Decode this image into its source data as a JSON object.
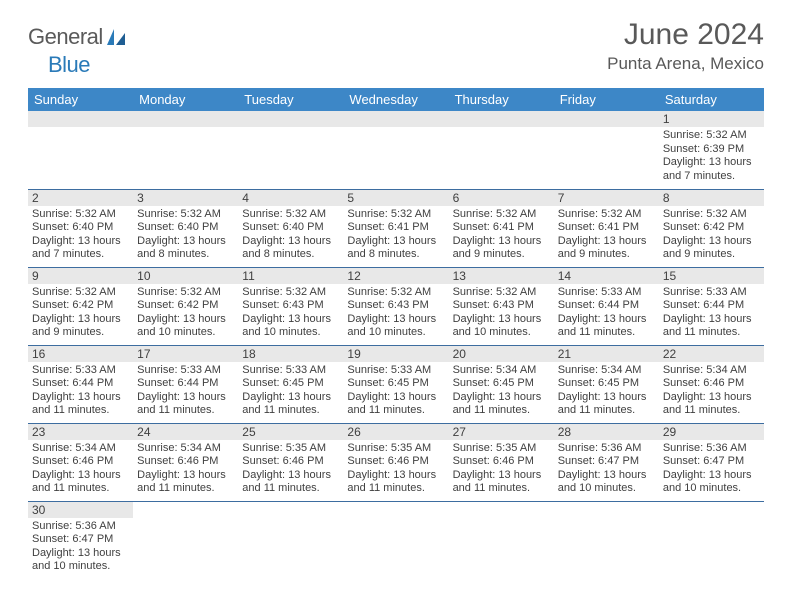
{
  "brand": {
    "text1": "General",
    "text2": "Blue"
  },
  "title": "June 2024",
  "location": "Punta Arena, Mexico",
  "colors": {
    "header_bg": "#3d87c7",
    "header_text": "#ffffff",
    "daynum_bg": "#e8e8e8",
    "row_border": "#3d6da0",
    "body_text": "#404040",
    "title_text": "#595959",
    "logo_gray": "#5a5a5a",
    "logo_blue": "#2a7ab8"
  },
  "day_headers": [
    "Sunday",
    "Monday",
    "Tuesday",
    "Wednesday",
    "Thursday",
    "Friday",
    "Saturday"
  ],
  "weeks": [
    [
      {
        "n": "",
        "lines": []
      },
      {
        "n": "",
        "lines": []
      },
      {
        "n": "",
        "lines": []
      },
      {
        "n": "",
        "lines": []
      },
      {
        "n": "",
        "lines": []
      },
      {
        "n": "",
        "lines": []
      },
      {
        "n": "1",
        "lines": [
          "Sunrise: 5:32 AM",
          "Sunset: 6:39 PM",
          "Daylight: 13 hours",
          "and 7 minutes."
        ]
      }
    ],
    [
      {
        "n": "2",
        "lines": [
          "Sunrise: 5:32 AM",
          "Sunset: 6:40 PM",
          "Daylight: 13 hours",
          "and 7 minutes."
        ]
      },
      {
        "n": "3",
        "lines": [
          "Sunrise: 5:32 AM",
          "Sunset: 6:40 PM",
          "Daylight: 13 hours",
          "and 8 minutes."
        ]
      },
      {
        "n": "4",
        "lines": [
          "Sunrise: 5:32 AM",
          "Sunset: 6:40 PM",
          "Daylight: 13 hours",
          "and 8 minutes."
        ]
      },
      {
        "n": "5",
        "lines": [
          "Sunrise: 5:32 AM",
          "Sunset: 6:41 PM",
          "Daylight: 13 hours",
          "and 8 minutes."
        ]
      },
      {
        "n": "6",
        "lines": [
          "Sunrise: 5:32 AM",
          "Sunset: 6:41 PM",
          "Daylight: 13 hours",
          "and 9 minutes."
        ]
      },
      {
        "n": "7",
        "lines": [
          "Sunrise: 5:32 AM",
          "Sunset: 6:41 PM",
          "Daylight: 13 hours",
          "and 9 minutes."
        ]
      },
      {
        "n": "8",
        "lines": [
          "Sunrise: 5:32 AM",
          "Sunset: 6:42 PM",
          "Daylight: 13 hours",
          "and 9 minutes."
        ]
      }
    ],
    [
      {
        "n": "9",
        "lines": [
          "Sunrise: 5:32 AM",
          "Sunset: 6:42 PM",
          "Daylight: 13 hours",
          "and 9 minutes."
        ]
      },
      {
        "n": "10",
        "lines": [
          "Sunrise: 5:32 AM",
          "Sunset: 6:42 PM",
          "Daylight: 13 hours",
          "and 10 minutes."
        ]
      },
      {
        "n": "11",
        "lines": [
          "Sunrise: 5:32 AM",
          "Sunset: 6:43 PM",
          "Daylight: 13 hours",
          "and 10 minutes."
        ]
      },
      {
        "n": "12",
        "lines": [
          "Sunrise: 5:32 AM",
          "Sunset: 6:43 PM",
          "Daylight: 13 hours",
          "and 10 minutes."
        ]
      },
      {
        "n": "13",
        "lines": [
          "Sunrise: 5:32 AM",
          "Sunset: 6:43 PM",
          "Daylight: 13 hours",
          "and 10 minutes."
        ]
      },
      {
        "n": "14",
        "lines": [
          "Sunrise: 5:33 AM",
          "Sunset: 6:44 PM",
          "Daylight: 13 hours",
          "and 11 minutes."
        ]
      },
      {
        "n": "15",
        "lines": [
          "Sunrise: 5:33 AM",
          "Sunset: 6:44 PM",
          "Daylight: 13 hours",
          "and 11 minutes."
        ]
      }
    ],
    [
      {
        "n": "16",
        "lines": [
          "Sunrise: 5:33 AM",
          "Sunset: 6:44 PM",
          "Daylight: 13 hours",
          "and 11 minutes."
        ]
      },
      {
        "n": "17",
        "lines": [
          "Sunrise: 5:33 AM",
          "Sunset: 6:44 PM",
          "Daylight: 13 hours",
          "and 11 minutes."
        ]
      },
      {
        "n": "18",
        "lines": [
          "Sunrise: 5:33 AM",
          "Sunset: 6:45 PM",
          "Daylight: 13 hours",
          "and 11 minutes."
        ]
      },
      {
        "n": "19",
        "lines": [
          "Sunrise: 5:33 AM",
          "Sunset: 6:45 PM",
          "Daylight: 13 hours",
          "and 11 minutes."
        ]
      },
      {
        "n": "20",
        "lines": [
          "Sunrise: 5:34 AM",
          "Sunset: 6:45 PM",
          "Daylight: 13 hours",
          "and 11 minutes."
        ]
      },
      {
        "n": "21",
        "lines": [
          "Sunrise: 5:34 AM",
          "Sunset: 6:45 PM",
          "Daylight: 13 hours",
          "and 11 minutes."
        ]
      },
      {
        "n": "22",
        "lines": [
          "Sunrise: 5:34 AM",
          "Sunset: 6:46 PM",
          "Daylight: 13 hours",
          "and 11 minutes."
        ]
      }
    ],
    [
      {
        "n": "23",
        "lines": [
          "Sunrise: 5:34 AM",
          "Sunset: 6:46 PM",
          "Daylight: 13 hours",
          "and 11 minutes."
        ]
      },
      {
        "n": "24",
        "lines": [
          "Sunrise: 5:34 AM",
          "Sunset: 6:46 PM",
          "Daylight: 13 hours",
          "and 11 minutes."
        ]
      },
      {
        "n": "25",
        "lines": [
          "Sunrise: 5:35 AM",
          "Sunset: 6:46 PM",
          "Daylight: 13 hours",
          "and 11 minutes."
        ]
      },
      {
        "n": "26",
        "lines": [
          "Sunrise: 5:35 AM",
          "Sunset: 6:46 PM",
          "Daylight: 13 hours",
          "and 11 minutes."
        ]
      },
      {
        "n": "27",
        "lines": [
          "Sunrise: 5:35 AM",
          "Sunset: 6:46 PM",
          "Daylight: 13 hours",
          "and 11 minutes."
        ]
      },
      {
        "n": "28",
        "lines": [
          "Sunrise: 5:36 AM",
          "Sunset: 6:47 PM",
          "Daylight: 13 hours",
          "and 10 minutes."
        ]
      },
      {
        "n": "29",
        "lines": [
          "Sunrise: 5:36 AM",
          "Sunset: 6:47 PM",
          "Daylight: 13 hours",
          "and 10 minutes."
        ]
      }
    ],
    [
      {
        "n": "30",
        "lines": [
          "Sunrise: 5:36 AM",
          "Sunset: 6:47 PM",
          "Daylight: 13 hours",
          "and 10 minutes."
        ]
      },
      {
        "n": "",
        "lines": []
      },
      {
        "n": "",
        "lines": []
      },
      {
        "n": "",
        "lines": []
      },
      {
        "n": "",
        "lines": []
      },
      {
        "n": "",
        "lines": []
      },
      {
        "n": "",
        "lines": []
      }
    ]
  ]
}
